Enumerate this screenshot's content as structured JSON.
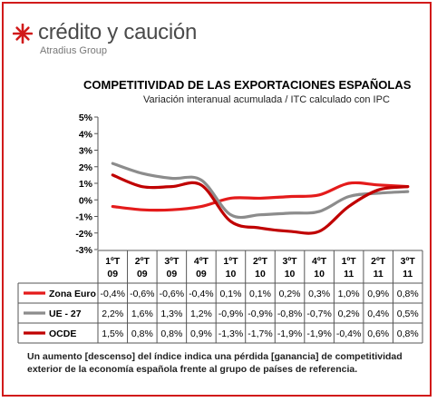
{
  "header": {
    "logo_name": "crédito y caución",
    "logo_sub": "Atradius Group",
    "logo_color": "#d11a1a"
  },
  "chart_data": {
    "type": "line",
    "title": "COMPETITIVIDAD DE LAS EXPORTACIONES ESPAÑOLAS",
    "subtitle": "Variación interanual acumulada  / ITC calculado con IPC",
    "categories": [
      [
        "1ºT",
        "09"
      ],
      [
        "2ºT",
        "09"
      ],
      [
        "3ºT",
        "09"
      ],
      [
        "4ºT",
        "09"
      ],
      [
        "1ºT",
        "10"
      ],
      [
        "2ºT",
        "10"
      ],
      [
        "3ºT",
        "10"
      ],
      [
        "4ºT",
        "10"
      ],
      [
        "1ºT",
        "11"
      ],
      [
        "2ºT",
        "11"
      ],
      [
        "3ºT",
        "11"
      ]
    ],
    "y_ticks": [
      "5%",
      "4%",
      "3%",
      "2%",
      "1%",
      "0%",
      "-1%",
      "-2%",
      "-3%"
    ],
    "ylim": [
      -3,
      5
    ],
    "grid": false,
    "series": [
      {
        "name": "Zona Euro",
        "color": "#e41b1b",
        "values": [
          -0.4,
          -0.6,
          -0.6,
          -0.4,
          0.1,
          0.1,
          0.2,
          0.3,
          1.0,
          0.9,
          0.8
        ],
        "labels": [
          "-0,4%",
          "-0,6%",
          "-0,6%",
          "-0,4%",
          "0,1%",
          "0,1%",
          "0,2%",
          "0,3%",
          "1,0%",
          "0,9%",
          "0,8%"
        ]
      },
      {
        "name": "UE - 27",
        "color": "#8c8c8c",
        "values": [
          2.2,
          1.6,
          1.3,
          1.2,
          -0.9,
          -0.9,
          -0.8,
          -0.7,
          0.2,
          0.4,
          0.5
        ],
        "labels": [
          "2,2%",
          "1,6%",
          "1,3%",
          "1,2%",
          "-0,9%",
          "-0,9%",
          "-0,8%",
          "-0,7%",
          "0,2%",
          "0,4%",
          "0,5%"
        ]
      },
      {
        "name": "OCDE",
        "color": "#c00000",
        "values": [
          1.5,
          0.8,
          0.8,
          0.9,
          -1.3,
          -1.7,
          -1.9,
          -1.9,
          -0.4,
          0.6,
          0.8
        ],
        "labels": [
          "1,5%",
          "0,8%",
          "0,8%",
          "0,9%",
          "-1,3%",
          "-1,7%",
          "-1,9%",
          "-1,9%",
          "-0,4%",
          "0,6%",
          "0,8%"
        ]
      }
    ]
  },
  "footnote": "Un aumento [descenso] del índice indica una pérdida [ganancia] de competitividad exterior de la economía española frente al grupo de países de referencia."
}
